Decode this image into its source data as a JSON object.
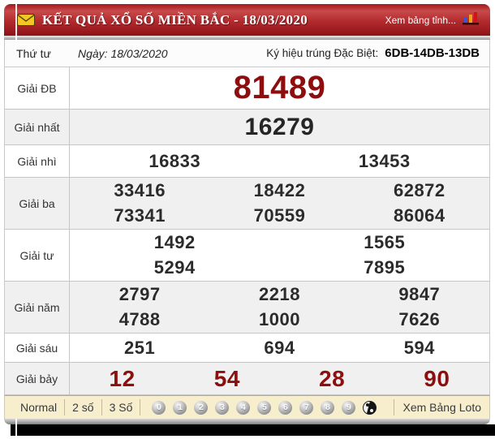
{
  "header": {
    "title": "KẾT QUẢ XỔ SỐ MIỀN BẮC - 18/03/2020",
    "link": "Xem bảng tỉnh..."
  },
  "info": {
    "weekday": "Thứ tư",
    "date_label": "Ngày: 18/03/2020",
    "symbol_label": "Ký hiệu trúng Đặc Biệt:",
    "symbol_value": "6DB-14DB-13DB"
  },
  "results": {
    "rows": [
      {
        "label": "Giải ĐB",
        "style": "special",
        "numbers": [
          [
            "81489"
          ]
        ]
      },
      {
        "label": "Giải nhất",
        "style": "first",
        "numbers": [
          [
            "16279"
          ]
        ]
      },
      {
        "label": "Giải nhì",
        "style": "default",
        "numbers": [
          [
            "16833",
            "13453"
          ]
        ]
      },
      {
        "label": "Giải ba",
        "style": "default",
        "numbers": [
          [
            "33416",
            "18422",
            "62872"
          ],
          [
            "73341",
            "70559",
            "86064"
          ]
        ]
      },
      {
        "label": "Giải tư",
        "style": "default",
        "numbers": [
          [
            "1492",
            "1565"
          ],
          [
            "5294",
            "7895"
          ]
        ]
      },
      {
        "label": "Giải năm",
        "style": "default",
        "numbers": [
          [
            "2797",
            "2218",
            "9847"
          ],
          [
            "4788",
            "1000",
            "7626"
          ]
        ]
      },
      {
        "label": "Giải sáu",
        "style": "default",
        "numbers": [
          [
            "251",
            "694",
            "594"
          ]
        ]
      },
      {
        "label": "Giải bảy",
        "style": "seventh",
        "numbers": [
          [
            "12",
            "54",
            "28",
            "90"
          ]
        ]
      }
    ]
  },
  "footer": {
    "modes": [
      "Normal",
      "2 số",
      "3 Số"
    ],
    "digit_buttons": [
      "0",
      "1",
      "2",
      "3",
      "4",
      "5",
      "6",
      "7",
      "8",
      "9"
    ],
    "loto_link": "Xem Bảng Loto"
  },
  "colors": {
    "accent_red": "#8c0e0e",
    "header_red": "#a81c1c",
    "footer_cream": "#f6eecd",
    "row_alt_gray": "#f0f0f0"
  }
}
